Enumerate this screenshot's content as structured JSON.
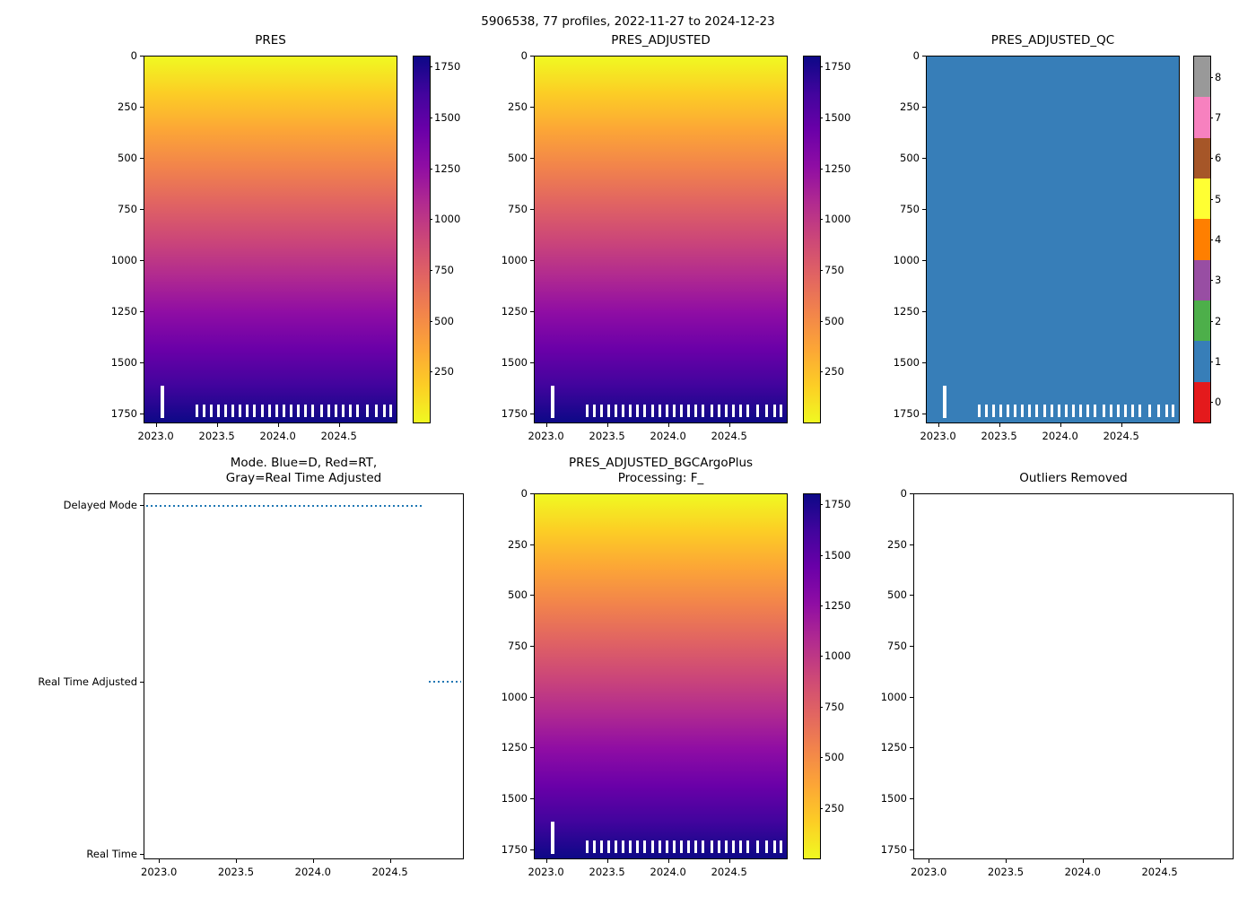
{
  "figure": {
    "title": "5906538, 77 profiles, 2022-11-27 to 2024-12-23",
    "float_id": "5906538",
    "profile_count": 77,
    "date_range": "2022-11-27 to 2024-12-23"
  },
  "colors": {
    "plasma_reversed": [
      "#f0f921",
      "#fcce25",
      "#fca636",
      "#f2844b",
      "#e16462",
      "#cc4778",
      "#b12a90",
      "#8f0da4",
      "#6a00a8",
      "#41049d",
      "#0d0887"
    ],
    "qc_flag_colors_0_to_8": [
      "#e41a1c",
      "#377eb8",
      "#4daf4a",
      "#984ea3",
      "#ff7f00",
      "#ffff33",
      "#a65628",
      "#f781bf",
      "#999999"
    ],
    "qc_fill": "#377eb8",
    "mode_line": "#1f77b4",
    "missing_mark": "#ffffff"
  },
  "chart_data": [
    {
      "type": "heatmap",
      "title": "PRES",
      "xlim": [
        2022.9,
        2024.98
      ],
      "ylim": [
        1800,
        0
      ],
      "x_ticks": [
        "2023.0",
        "2023.5",
        "2024.0",
        "2024.5"
      ],
      "y_ticks": [
        0,
        250,
        500,
        750,
        1000,
        1250,
        1500,
        1750
      ],
      "colorbar": {
        "ticks": [
          250,
          500,
          750,
          1000,
          1250,
          1500,
          1750
        ],
        "vmin": 0,
        "vmax": 1800
      },
      "description": "Pressure increases approximately linearly with depth from ~0 dbar at the surface (yellow) to ~1790 dbar at the deepest levels (dark navy), plasma_r colormap, uniform across all 77 profiles",
      "missing_bar": {
        "x": 2023.05,
        "y_top": 1620,
        "y_bottom": 1778
      },
      "missing_marks_y": [
        1712,
        1772
      ],
      "missing_marks_x": [
        2023.33,
        2023.39,
        2023.45,
        2023.51,
        2023.57,
        2023.63,
        2023.69,
        2023.75,
        2023.81,
        2023.87,
        2023.93,
        2023.99,
        2024.05,
        2024.11,
        2024.17,
        2024.23,
        2024.29,
        2024.36,
        2024.42,
        2024.48,
        2024.54,
        2024.6,
        2024.66,
        2024.74,
        2024.81,
        2024.88,
        2024.93
      ]
    },
    {
      "type": "heatmap",
      "title": "PRES_ADJUSTED",
      "xlim": [
        2022.9,
        2024.98
      ],
      "ylim": [
        1800,
        0
      ],
      "x_ticks": [
        "2023.0",
        "2023.5",
        "2024.0",
        "2024.5"
      ],
      "y_ticks": [
        0,
        250,
        500,
        750,
        1000,
        1250,
        1500,
        1750
      ],
      "colorbar": {
        "ticks": [
          250,
          500,
          750,
          1000,
          1250,
          1500,
          1750
        ],
        "vmin": 0,
        "vmax": 1800
      },
      "description": "Adjusted pressure, visually identical to PRES: ~0 dbar at surface to ~1790 dbar at depth, plasma_r colormap",
      "missing_bar": {
        "x": 2023.05,
        "y_top": 1620,
        "y_bottom": 1778
      },
      "missing_marks_y": [
        1712,
        1772
      ],
      "missing_marks_x": [
        2023.33,
        2023.39,
        2023.45,
        2023.51,
        2023.57,
        2023.63,
        2023.69,
        2023.75,
        2023.81,
        2023.87,
        2023.93,
        2023.99,
        2024.05,
        2024.11,
        2024.17,
        2024.23,
        2024.29,
        2024.36,
        2024.42,
        2024.48,
        2024.54,
        2024.6,
        2024.66,
        2024.74,
        2024.81,
        2024.88,
        2024.93
      ]
    },
    {
      "type": "heatmap",
      "title": "PRES_ADJUSTED_QC",
      "fill_color": "qc_fill",
      "dominant_value": 1,
      "xlim": [
        2022.9,
        2024.98
      ],
      "ylim": [
        1800,
        0
      ],
      "x_ticks": [
        "2023.0",
        "2023.5",
        "2024.0",
        "2024.5"
      ],
      "y_ticks": [
        0,
        250,
        500,
        750,
        1000,
        1250,
        1500,
        1750
      ],
      "colorbar": {
        "ticks": [
          0,
          1,
          2,
          3,
          4,
          5,
          6,
          7,
          8
        ],
        "vmin": -0.5,
        "vmax": 8.5,
        "discrete": true
      },
      "description": "QC flags for all profiles and depths equal 1 (good data, solid blue); discrete flag colorbar 0=red,1=blue,2=green,3=purple,4=orange,5=yellow,6=brown,7=pink,8=gray",
      "missing_bar": {
        "x": 2023.05,
        "y_top": 1620,
        "y_bottom": 1778
      },
      "missing_marks_y": [
        1712,
        1772
      ],
      "missing_marks_x": [
        2023.33,
        2023.39,
        2023.45,
        2023.51,
        2023.57,
        2023.63,
        2023.69,
        2023.75,
        2023.81,
        2023.87,
        2023.93,
        2023.99,
        2024.05,
        2024.11,
        2024.17,
        2024.23,
        2024.29,
        2024.36,
        2024.42,
        2024.48,
        2024.54,
        2024.6,
        2024.66,
        2024.74,
        2024.81,
        2024.88,
        2024.93
      ]
    },
    {
      "type": "line",
      "title": "Mode. Blue=D, Red=RT,\nGray=Real Time Adjusted",
      "xlim": [
        2022.9,
        2024.98
      ],
      "x_ticks": [
        "2023.0",
        "2023.5",
        "2024.0",
        "2024.5"
      ],
      "categories": [
        "Delayed Mode",
        "Real Time Adjusted",
        "Real Time"
      ],
      "segments": [
        {
          "category": "Delayed Mode",
          "x_start": 2022.91,
          "x_end": 2024.73,
          "style": "dotted"
        },
        {
          "category": "Real Time Adjusted",
          "x_start": 2024.76,
          "x_end": 2024.97,
          "style": "dotted"
        }
      ],
      "description": "Profiles from 2022-11-27 through ~2024.73 are Delayed Mode; the most recent profiles (~2024.76 to 2024.97) are Real Time Adjusted; none are Real Time"
    },
    {
      "type": "heatmap",
      "title": "PRES_ADJUSTED_BGCArgoPlus\nProcessing: F_",
      "xlim": [
        2022.9,
        2024.98
      ],
      "ylim": [
        1800,
        0
      ],
      "x_ticks": [
        "2023.0",
        "2023.5",
        "2024.0",
        "2024.5"
      ],
      "y_ticks": [
        0,
        250,
        500,
        750,
        1000,
        1250,
        1500,
        1750
      ],
      "colorbar": {
        "ticks": [
          250,
          500,
          750,
          1000,
          1250,
          1500,
          1750
        ],
        "vmin": 0,
        "vmax": 1800
      },
      "description": "BGCArgoPlus-processed adjusted pressure, visually identical to PRES: ~0 dbar at surface to ~1790 dbar at depth, plasma_r colormap",
      "missing_bar": {
        "x": 2023.05,
        "y_top": 1620,
        "y_bottom": 1778
      },
      "missing_marks_y": [
        1712,
        1772
      ],
      "missing_marks_x": [
        2023.33,
        2023.39,
        2023.45,
        2023.51,
        2023.57,
        2023.63,
        2023.69,
        2023.75,
        2023.81,
        2023.87,
        2023.93,
        2023.99,
        2024.05,
        2024.11,
        2024.17,
        2024.23,
        2024.29,
        2024.36,
        2024.42,
        2024.48,
        2024.54,
        2024.6,
        2024.66,
        2024.74,
        2024.81,
        2024.88,
        2024.93
      ]
    },
    {
      "type": "empty",
      "title": "Outliers Removed",
      "xlim": [
        2022.9,
        2024.98
      ],
      "ylim": [
        1800,
        0
      ],
      "x_ticks": [
        "2023.0",
        "2023.5",
        "2024.0",
        "2024.5"
      ],
      "y_ticks": [
        0,
        250,
        500,
        750,
        1000,
        1250,
        1500,
        1750
      ],
      "description": "No outliers removed; axes are empty"
    }
  ]
}
